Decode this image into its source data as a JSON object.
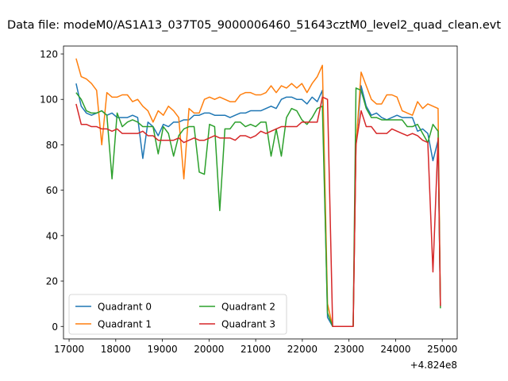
{
  "figure": {
    "title": "Data file: modeM0/AS1A13_037T05_9000006460_51643cztM0_level2_quad_clean.evt"
  },
  "chart_data": {
    "type": "line",
    "title": "Data file: modeM0/AS1A13_037T05_9000006460_51643cztM0_level2_quad_clean.evt",
    "xlabel": "",
    "ylabel": "",
    "x_offset_label": "+4.824e8",
    "xlim": [
      16880,
      25320
    ],
    "ylim": [
      -5.5,
      123.5
    ],
    "x_ticks": [
      17000,
      18000,
      19000,
      20000,
      21000,
      22000,
      23000,
      24000,
      25000
    ],
    "y_ticks": [
      0,
      20,
      40,
      60,
      80,
      100,
      120
    ],
    "grid": false,
    "legend": {
      "placement": "lower-left",
      "columns": 2
    },
    "x": [
      17150,
      17260,
      17370,
      17480,
      17590,
      17700,
      17810,
      17920,
      18030,
      18140,
      18250,
      18360,
      18470,
      18580,
      18690,
      18800,
      18910,
      19020,
      19130,
      19240,
      19350,
      19460,
      19570,
      19680,
      19790,
      19900,
      20010,
      20120,
      20230,
      20340,
      20450,
      20560,
      20670,
      20780,
      20890,
      21000,
      21110,
      21220,
      21330,
      21440,
      21550,
      21660,
      21770,
      21880,
      21990,
      22100,
      22210,
      22320,
      22430,
      22540,
      22650,
      22760,
      22870,
      22980,
      23090,
      23150,
      23260,
      23370,
      23480,
      23590,
      23700,
      23810,
      23920,
      24030,
      24140,
      24250,
      24360,
      24470,
      24580,
      24690,
      24800,
      24910,
      24960
    ],
    "series": [
      {
        "name": "Quadrant 0",
        "color": "#1f77b4",
        "values": [
          107,
          97,
          94,
          93,
          94,
          95,
          93,
          94,
          92,
          92,
          92,
          93,
          92,
          74,
          90,
          88,
          84,
          89,
          88,
          90,
          90,
          91,
          91,
          93,
          93,
          94,
          94,
          93,
          93,
          93,
          92,
          93,
          94,
          94,
          95,
          95,
          95,
          96,
          97,
          96,
          100,
          101,
          101,
          100,
          100,
          98,
          101,
          99,
          104,
          4,
          0,
          0,
          0,
          0,
          0,
          80,
          106,
          97,
          93,
          94,
          92,
          91,
          92,
          93,
          92,
          92,
          92,
          86,
          87,
          85,
          73,
          82,
          9
        ]
      },
      {
        "name": "Quadrant 1",
        "color": "#ff7f0e",
        "values": [
          118,
          110,
          109,
          107,
          104,
          80,
          103,
          101,
          101,
          102,
          102,
          99,
          100,
          97,
          95,
          90,
          95,
          93,
          97,
          95,
          92,
          65,
          96,
          94,
          94,
          100,
          101,
          100,
          101,
          100,
          99,
          99,
          102,
          103,
          103,
          102,
          102,
          103,
          106,
          103,
          106,
          105,
          107,
          105,
          107,
          103,
          107,
          110,
          115,
          10,
          0,
          0,
          0,
          0,
          0,
          79,
          112,
          106,
          100,
          98,
          98,
          102,
          102,
          101,
          95,
          94,
          93,
          99,
          96,
          98,
          97,
          96,
          10
        ]
      },
      {
        "name": "Quadrant 2",
        "color": "#2ca02c",
        "values": [
          103,
          100,
          95,
          94,
          94,
          95,
          93,
          65,
          94,
          88,
          90,
          91,
          90,
          88,
          88,
          88,
          76,
          88,
          85,
          75,
          84,
          87,
          88,
          88,
          68,
          67,
          89,
          88,
          51,
          87,
          87,
          90,
          90,
          88,
          89,
          88,
          90,
          90,
          75,
          87,
          75,
          92,
          96,
          95,
          91,
          89,
          92,
          96,
          97,
          6,
          0,
          0,
          0,
          0,
          0,
          105,
          104,
          96,
          92,
          92,
          91,
          91,
          91,
          91,
          91,
          88,
          88,
          89,
          85,
          81,
          89,
          86,
          8
        ]
      },
      {
        "name": "Quadrant 3",
        "color": "#d62728",
        "values": [
          98,
          89,
          89,
          88,
          88,
          87,
          87,
          86,
          87,
          85,
          85,
          85,
          85,
          86,
          84,
          84,
          82,
          82,
          82,
          82,
          83,
          81,
          82,
          83,
          82,
          82,
          83,
          84,
          83,
          83,
          83,
          82,
          84,
          84,
          83,
          84,
          86,
          85,
          86,
          87,
          88,
          88,
          88,
          88,
          90,
          90,
          90,
          90,
          101,
          100,
          0,
          0,
          0,
          0,
          0,
          80,
          95,
          88,
          88,
          85,
          85,
          85,
          87,
          86,
          85,
          84,
          85,
          84,
          82,
          81,
          24,
          83,
          9
        ]
      }
    ]
  }
}
